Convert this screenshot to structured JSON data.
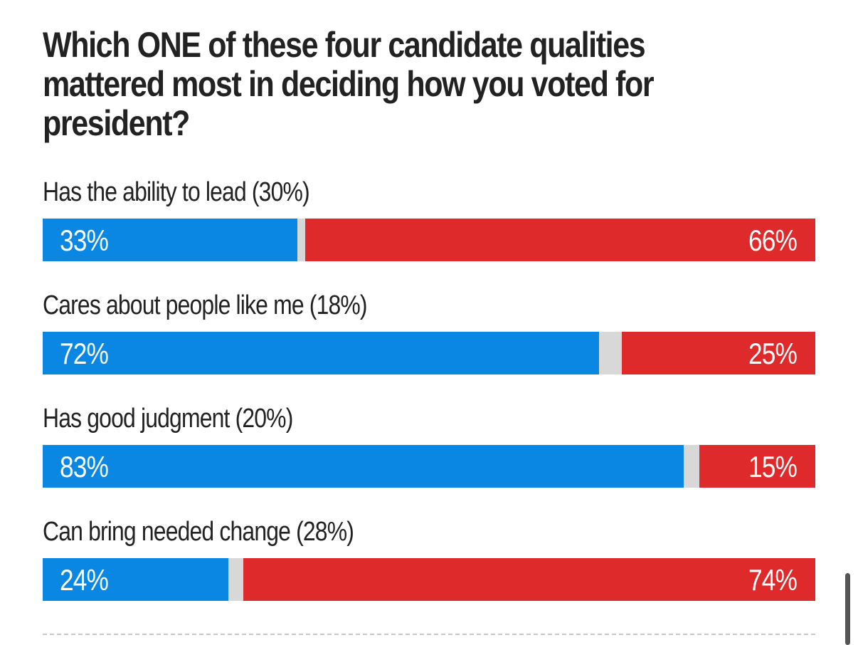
{
  "title": "Which ONE of these four candidate qualities mattered most in deciding how you voted for president?",
  "colors": {
    "blue": "#0a87e2",
    "red": "#de2a2a",
    "other": "#d8d8d8",
    "text": "#222222"
  },
  "chart_data": {
    "type": "bar",
    "stacked": true,
    "orientation": "horizontal",
    "title": "Which ONE of these four candidate qualities mattered most in deciding how you voted for president?",
    "categories": [
      "Has the ability to lead (30%)",
      "Cares about people like me (18%)",
      "Has good judgment (20%)",
      "Can bring needed change (28%)"
    ],
    "series": [
      {
        "values": [
          33,
          72,
          83,
          24
        ],
        "color": "#0a87e2"
      },
      {
        "values": [
          66,
          25,
          15,
          74
        ],
        "color": "#de2a2a"
      }
    ],
    "value_labels_left": [
      "33%",
      "72%",
      "83%",
      "24%"
    ],
    "value_labels_right": [
      "66%",
      "25%",
      "15%",
      "74%"
    ],
    "xlim": [
      0,
      100
    ],
    "grid": false
  }
}
